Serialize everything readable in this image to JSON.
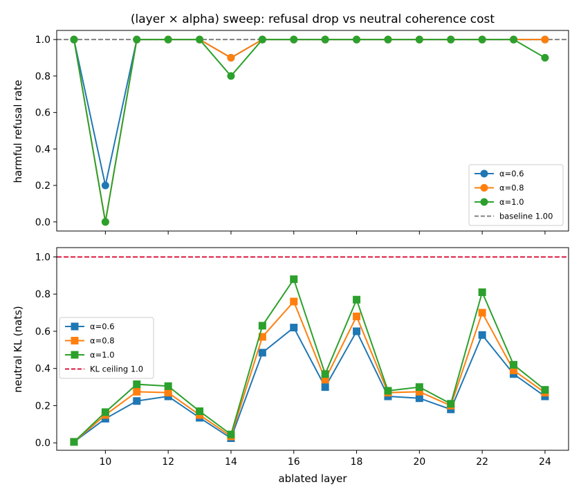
{
  "chart_data": [
    {
      "type": "line",
      "title": "(layer × alpha) sweep: refusal drop vs neutral coherence cost",
      "xlabel": "",
      "ylabel": "harmful refusal rate",
      "x": [
        9,
        10,
        11,
        12,
        13,
        14,
        15,
        16,
        17,
        18,
        19,
        20,
        21,
        22,
        23,
        24
      ],
      "xlim": [
        8.45,
        24.75
      ],
      "ylim": [
        -0.05,
        1.05
      ],
      "xticks": [
        10,
        12,
        14,
        16,
        18,
        20,
        22,
        24
      ],
      "yticks": [
        "0.0",
        "0.2",
        "0.4",
        "0.6",
        "0.8",
        "1.0"
      ],
      "marker": "circle",
      "grid": false,
      "legend_position": "lower-right",
      "series": [
        {
          "name": "α=0.6",
          "color": "#1f77b4",
          "values": [
            1.0,
            0.2,
            1.0,
            1.0,
            1.0,
            0.9,
            1.0,
            1.0,
            1.0,
            1.0,
            1.0,
            1.0,
            1.0,
            1.0,
            1.0,
            1.0
          ]
        },
        {
          "name": "α=0.8",
          "color": "#ff7f0e",
          "values": [
            1.0,
            0.0,
            1.0,
            1.0,
            1.0,
            0.9,
            1.0,
            1.0,
            1.0,
            1.0,
            1.0,
            1.0,
            1.0,
            1.0,
            1.0,
            1.0
          ]
        },
        {
          "name": "α=1.0",
          "color": "#2ca02c",
          "values": [
            1.0,
            0.0,
            1.0,
            1.0,
            1.0,
            0.8,
            1.0,
            1.0,
            1.0,
            1.0,
            1.0,
            1.0,
            1.0,
            1.0,
            1.0,
            0.9
          ]
        }
      ],
      "reference_line": {
        "name": "baseline 1.00",
        "value": 1.0,
        "color": "#808080",
        "style": "dashed"
      }
    },
    {
      "type": "line",
      "title": "",
      "xlabel": "ablated layer",
      "ylabel": "neutral KL (nats)",
      "x": [
        9,
        10,
        11,
        12,
        13,
        14,
        15,
        16,
        17,
        18,
        19,
        20,
        21,
        22,
        23,
        24
      ],
      "xlim": [
        8.45,
        24.75
      ],
      "ylim": [
        -0.04,
        1.05
      ],
      "xticks": [
        10,
        12,
        14,
        16,
        18,
        20,
        22,
        24
      ],
      "yticks": [
        "0.0",
        "0.2",
        "0.4",
        "0.6",
        "0.8",
        "1.0"
      ],
      "marker": "square",
      "grid": false,
      "legend_position": "center-left",
      "series": [
        {
          "name": "α=0.6",
          "color": "#1f77b4",
          "values": [
            0.005,
            0.13,
            0.225,
            0.25,
            0.135,
            0.025,
            0.485,
            0.62,
            0.3,
            0.6,
            0.25,
            0.24,
            0.18,
            0.58,
            0.37,
            0.25
          ]
        },
        {
          "name": "α=0.8",
          "color": "#ff7f0e",
          "values": [
            0.005,
            0.15,
            0.275,
            0.27,
            0.15,
            0.035,
            0.57,
            0.76,
            0.34,
            0.68,
            0.27,
            0.275,
            0.2,
            0.7,
            0.39,
            0.27
          ]
        },
        {
          "name": "α=1.0",
          "color": "#2ca02c",
          "values": [
            0.005,
            0.165,
            0.315,
            0.305,
            0.17,
            0.045,
            0.63,
            0.88,
            0.37,
            0.77,
            0.28,
            0.3,
            0.21,
            0.81,
            0.42,
            0.285
          ]
        }
      ],
      "reference_line": {
        "name": "KL ceiling 1.0",
        "value": 1.0,
        "color": "#dc143c",
        "style": "dashed"
      }
    }
  ]
}
